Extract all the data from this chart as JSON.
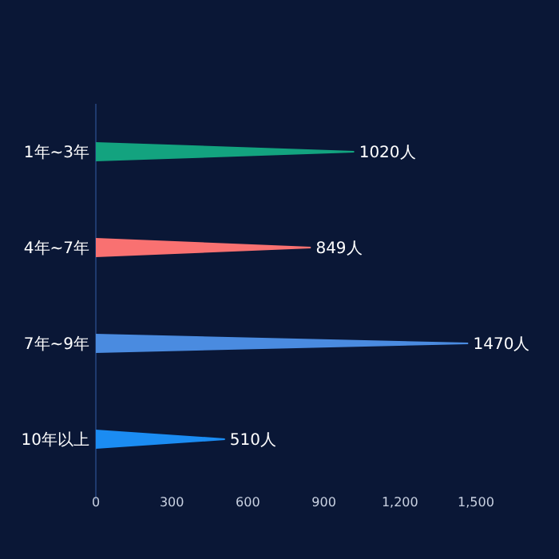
{
  "chart_data": {
    "type": "bar",
    "orientation": "horizontal",
    "categories": [
      "1年~3年",
      "4年~7年",
      "7年~9年",
      "10年以上"
    ],
    "values": [
      1020,
      849,
      1470,
      510
    ],
    "value_labels": [
      "1020人",
      "849人",
      "1470人",
      "510人"
    ],
    "colors": [
      "#13a37f",
      "#f97171",
      "#4a8be0",
      "#1b8cf2"
    ],
    "xlim": [
      0,
      1500
    ],
    "xticks": [
      0,
      300,
      600,
      900,
      {
        "value": 1200,
        "label": "1,200"
      },
      {
        "value": 1500,
        "label": "1,500"
      }
    ],
    "grid": false
  }
}
